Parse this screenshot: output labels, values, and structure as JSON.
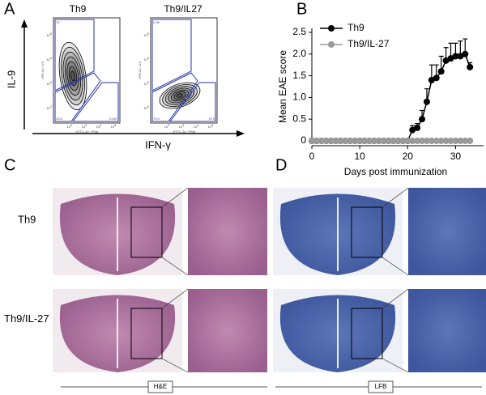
{
  "panel_labels": [
    "A",
    "B",
    "C",
    "D"
  ],
  "flow": {
    "y_label": "IL-9",
    "x_label": "IFN-γ",
    "tick_base": "10",
    "tick_exponents": [
      "2",
      "3",
      "4",
      "5"
    ],
    "plots": [
      {
        "title": "Th9",
        "y_axis": "<PE-A>: IL9",
        "x_axis": "<FITC-A>: IFNg",
        "q_top": "75",
        "q_bottom_left": "23.5",
        "q_bottom_right": "0.047"
      },
      {
        "title": "Th9/IL27",
        "y_axis": "<PE-A>: IL9",
        "x_axis": "<FITC-A>: IFNg",
        "q_top": "0.35",
        "q_bottom_left": "79.4",
        "q_bottom_right": "19.9"
      }
    ]
  },
  "histology": {
    "row_labels": [
      "Th9",
      "Th9/IL-27"
    ],
    "stains": [
      "H&E",
      "LFB"
    ]
  },
  "chart_data": {
    "type": "line",
    "ylabel": "Mean EAE score",
    "xlabel": "Days post immunization",
    "x": [
      0,
      1,
      2,
      3,
      4,
      5,
      6,
      7,
      8,
      9,
      10,
      11,
      12,
      13,
      14,
      15,
      16,
      17,
      18,
      19,
      20,
      21,
      22,
      23,
      24,
      25,
      26,
      27,
      28,
      29,
      30,
      31,
      32,
      33
    ],
    "xlim": [
      0,
      35
    ],
    "xticks": [
      0,
      10,
      20,
      30
    ],
    "ylim": [
      0,
      2.5
    ],
    "yticks": [
      0,
      0.5,
      {
        "value": 1,
        "label": "1.0"
      },
      1.5,
      {
        "value": 2,
        "label": "2.0"
      },
      2.5
    ],
    "legend": "upper left",
    "series": [
      {
        "name": "Th9",
        "color": "#000000",
        "values": [
          0,
          0,
          0,
          0,
          0,
          0,
          0,
          0,
          0,
          0,
          0,
          0,
          0,
          0,
          0,
          0,
          0,
          0,
          0,
          0,
          0,
          0.25,
          0.3,
          0.5,
          0.9,
          1.4,
          1.45,
          1.6,
          1.85,
          1.9,
          1.95,
          1.95,
          2.0,
          1.7
        ],
        "errors": [
          0,
          0,
          0,
          0,
          0,
          0,
          0,
          0,
          0,
          0,
          0,
          0,
          0,
          0,
          0,
          0,
          0,
          0,
          0,
          0,
          0,
          0.1,
          0.1,
          0.2,
          0.3,
          0.35,
          0.3,
          0.35,
          0.3,
          0.35,
          0.3,
          0.35,
          0.35,
          0.1
        ]
      },
      {
        "name": "Th9/IL-27",
        "color": "#999999",
        "values": [
          0,
          0,
          0,
          0,
          0,
          0,
          0,
          0,
          0,
          0,
          0,
          0,
          0,
          0,
          0,
          0,
          0,
          0,
          0,
          0,
          0,
          0,
          0,
          0,
          0,
          0,
          0,
          0,
          0,
          0,
          0,
          0,
          0,
          0
        ]
      }
    ]
  }
}
